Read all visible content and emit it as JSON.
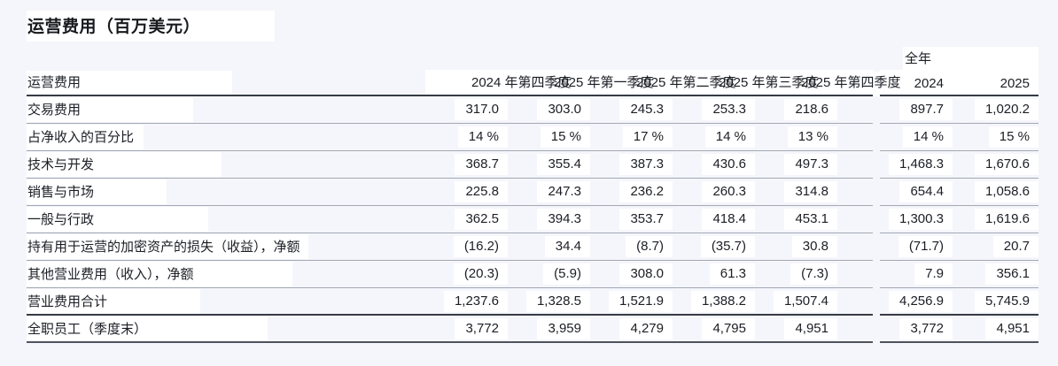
{
  "title": "运营费用（百万美元）",
  "colors": {
    "page_background": "#f5f6fb",
    "highlight_box": "#ffffff",
    "dark_rule": "#363b45",
    "light_rule": "#a2a8b4",
    "text": "#1b1e24"
  },
  "table": {
    "label_header": "运营费用",
    "full_year_label": "全年",
    "quarter_headers": [
      "2024 年第四季度",
      "2025 年第一季度",
      "2025 年第二季度",
      "2025 年第三季度",
      "2025 年第四季度"
    ],
    "year_headers": [
      "2024",
      "2025"
    ],
    "rows": [
      {
        "label": "交易费用",
        "q": [
          "317.0",
          "303.0",
          "245.3",
          "253.3",
          "218.6"
        ],
        "y": [
          "897.7",
          "1,020.2"
        ]
      },
      {
        "label": "占净收入的百分比",
        "q": [
          "14 %",
          "15 %",
          "17 %",
          "14 %",
          "13 %"
        ],
        "y": [
          "14 %",
          "15 %"
        ]
      },
      {
        "label": "技术与开发",
        "q": [
          "368.7",
          "355.4",
          "387.3",
          "430.6",
          "497.3"
        ],
        "y": [
          "1,468.3",
          "1,670.6"
        ]
      },
      {
        "label": "销售与市场",
        "q": [
          "225.8",
          "247.3",
          "236.2",
          "260.3",
          "314.8"
        ],
        "y": [
          "654.4",
          "1,058.6"
        ]
      },
      {
        "label": "一般与行政",
        "q": [
          "362.5",
          "394.3",
          "353.7",
          "418.4",
          "453.1"
        ],
        "y": [
          "1,300.3",
          "1,619.6"
        ]
      },
      {
        "label": "持有用于运营的加密资产的损失（收益），净额",
        "q": [
          "(16.2)",
          "34.4",
          "(8.7)",
          "(35.7)",
          "30.8"
        ],
        "y": [
          "(71.7)",
          "20.7"
        ]
      },
      {
        "label": "其他营业费用（收入），净额",
        "q": [
          "(20.3)",
          "(5.9)",
          "308.0",
          "61.3",
          "(7.3)"
        ],
        "y": [
          "7.9",
          "356.1"
        ]
      },
      {
        "label": "营业费用合计",
        "q": [
          "1,237.6",
          "1,328.5",
          "1,521.9",
          "1,388.2",
          "1,507.4"
        ],
        "y": [
          "4,256.9",
          "5,745.9"
        ]
      },
      {
        "label": "全职员工（季度末）",
        "q": [
          "3,772",
          "3,959",
          "4,279",
          "4,795",
          "4,951"
        ],
        "y": [
          "3,772",
          "4,951"
        ]
      }
    ],
    "total_row_index": 7,
    "last_row_index": 8
  }
}
